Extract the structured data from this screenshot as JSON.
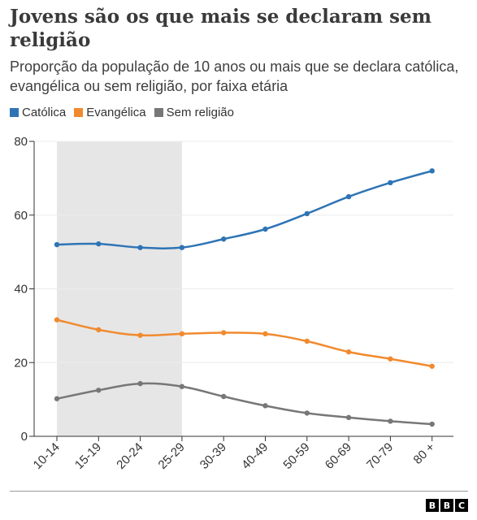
{
  "title": "Jovens são os que mais se declaram sem religião",
  "subtitle": "Proporção da população de 10 anos ou mais que se declara católica, evangélica ou sem religião, por faixa etária",
  "legend": [
    {
      "label": "Católica",
      "color": "#2e74b5"
    },
    {
      "label": "Evangélica",
      "color": "#f18a2e"
    },
    {
      "label": "Sem religião",
      "color": "#777777"
    }
  ],
  "brand": {
    "logo_letters": [
      "B",
      "B",
      "C"
    ]
  },
  "chart_data": {
    "type": "line",
    "categories": [
      "10-14",
      "15-19",
      "20-24",
      "25-29",
      "30-39",
      "40-49",
      "50-59",
      "60-69",
      "70-79",
      "80 +"
    ],
    "series": [
      {
        "name": "Católica",
        "color": "#2e74b5",
        "values": [
          52.0,
          52.2,
          51.2,
          51.2,
          53.5,
          56.2,
          60.4,
          65.0,
          68.8,
          72.0
        ]
      },
      {
        "name": "Evangélica",
        "color": "#f18a2e",
        "values": [
          31.6,
          28.9,
          27.4,
          27.8,
          28.1,
          27.8,
          25.8,
          22.9,
          21.0,
          19.0
        ]
      },
      {
        "name": "Sem religião",
        "color": "#777777",
        "values": [
          10.2,
          12.5,
          14.3,
          13.5,
          10.8,
          8.3,
          6.3,
          5.1,
          4.1,
          3.3
        ]
      }
    ],
    "highlight_band": {
      "from": "10-14",
      "to": "25-29",
      "color": "#e6e6e6"
    },
    "yticks": [
      0,
      20,
      40,
      60,
      80
    ],
    "ylim": [
      0,
      80
    ],
    "grid": true,
    "legend_position": "top-left"
  }
}
